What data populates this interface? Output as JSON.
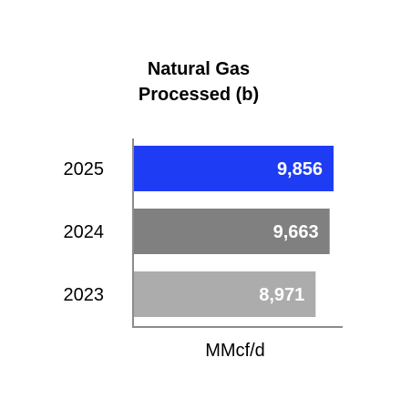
{
  "chart_data": {
    "type": "bar",
    "orientation": "horizontal",
    "title_lines": [
      "Natural Gas",
      "Processed (b)"
    ],
    "categories": [
      "2025",
      "2024",
      "2023"
    ],
    "values": [
      9856,
      9663,
      8971
    ],
    "value_labels": [
      "9,856",
      "9,663",
      "8,971"
    ],
    "colors": [
      "#1f3cf5",
      "#808080",
      "#acacac"
    ],
    "xlabel": "MMcf/d",
    "ylabel": "",
    "xlim": [
      0,
      9856
    ],
    "grid": false,
    "legend": "none"
  }
}
